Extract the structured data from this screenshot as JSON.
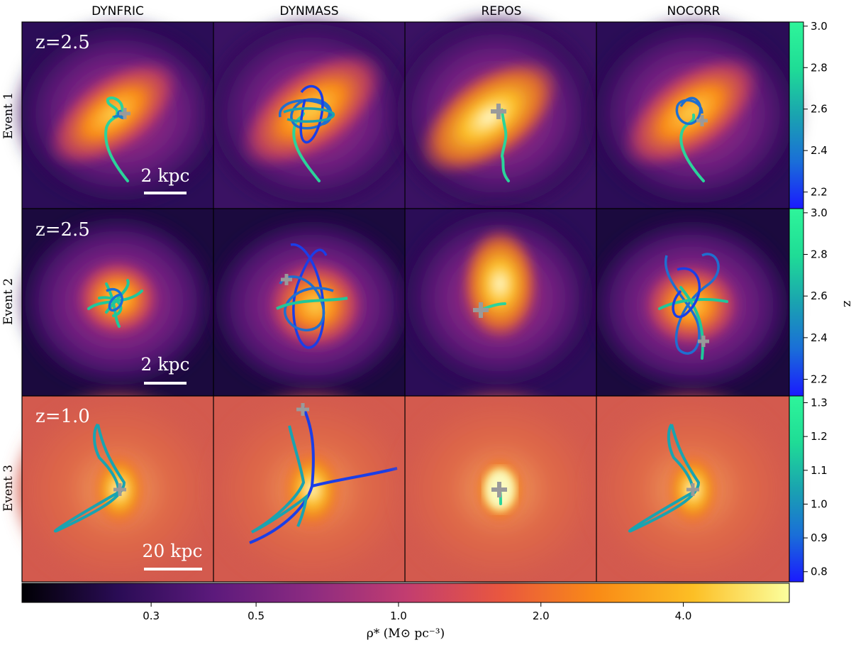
{
  "figure": {
    "columns": [
      "DYNFRIC",
      "DYNMASS",
      "REPOS",
      "NOCORR"
    ],
    "rows": [
      {
        "label": "Event 1",
        "redshift_label": "z=2.5",
        "scale_label": "2 kpc"
      },
      {
        "label": "Event 2",
        "redshift_label": "z=2.5",
        "scale_label": "2 kpc"
      },
      {
        "label": "Event 3",
        "redshift_label": "z=1.0",
        "scale_label": "20 kpc"
      }
    ],
    "side_colorbar": {
      "label": "z",
      "bars": [
        {
          "ticks": [
            "3.0",
            "2.8",
            "2.6",
            "2.4",
            "2.2"
          ],
          "values": [
            3.0,
            2.8,
            2.6,
            2.4,
            2.2
          ],
          "range": [
            2.12,
            3.02
          ]
        },
        {
          "ticks": [
            "3.0",
            "2.8",
            "2.6",
            "2.4",
            "2.2"
          ],
          "values": [
            3.0,
            2.8,
            2.6,
            2.4,
            2.2
          ],
          "range": [
            2.12,
            3.02
          ]
        },
        {
          "ticks": [
            "1.3",
            "1.2",
            "1.1",
            "1.0",
            "0.9",
            "0.8"
          ],
          "values": [
            1.3,
            1.2,
            1.1,
            1.0,
            0.9,
            0.8
          ],
          "range": [
            0.77,
            1.32
          ]
        }
      ],
      "colors": [
        "#1a1aff",
        "#1a6ed8",
        "#1aa3b0",
        "#1fdc96",
        "#2ef59a"
      ]
    },
    "bottom_colorbar": {
      "label": "ρ* (M⊙ pc⁻³)",
      "ticks": [
        "0.3",
        "0.5",
        "1.0",
        "2.0",
        "4.0"
      ],
      "tick_values": [
        0.3,
        0.5,
        1.0,
        2.0,
        4.0
      ],
      "range": [
        0.16,
        6.7
      ],
      "log_scale": true,
      "colors": [
        "#000004",
        "#2a0c55",
        "#5c1a7c",
        "#8c2b81",
        "#c23d70",
        "#e9573f",
        "#f98b16",
        "#fcbf25",
        "#fbff9e"
      ]
    }
  }
}
